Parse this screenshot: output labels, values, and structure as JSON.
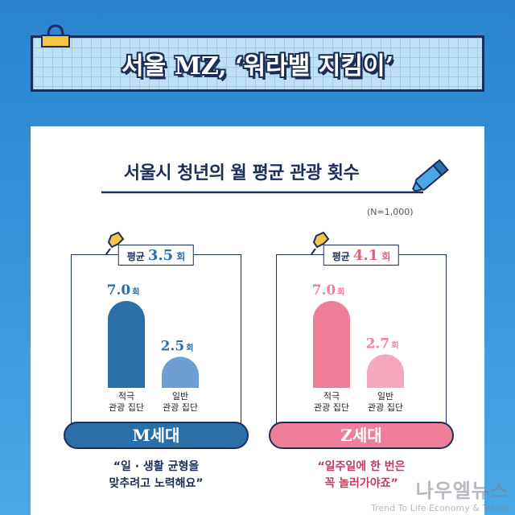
{
  "header": {
    "title": "서울 MZ, ‘워라밸 지킴이’"
  },
  "chart_title": "서울시 청년의 월 평균 관광 횟수",
  "sample_note": "(N=1,000)",
  "colors": {
    "navy": "#1c2d5a",
    "m_dark": "#2b6fa8",
    "m_light": "#6e9fd4",
    "z_dark": "#ef7f98",
    "z_light": "#f5a8bd"
  },
  "chart_data": [
    {
      "type": "bar",
      "group": "M세대",
      "categories": [
        "적극\n관광 집단",
        "일반\n관광 집단"
      ],
      "values": [
        7.0,
        2.5
      ],
      "value_labels": [
        "7.0",
        "2.5"
      ],
      "unit": "회",
      "average_label": "평균",
      "average_value": "3.5",
      "ylim": [
        0,
        7.0
      ]
    },
    {
      "type": "bar",
      "group": "Z세대",
      "categories": [
        "적극\n관광 집단",
        "일반\n관광 집단"
      ],
      "values": [
        7.0,
        2.7
      ],
      "value_labels": [
        "7.0",
        "2.7"
      ],
      "unit": "회",
      "average_label": "평균",
      "average_value": "4.1",
      "ylim": [
        0,
        7.0
      ]
    }
  ],
  "quotes": {
    "m_line1": "“일 · 생활 균형을",
    "m_line2": "맞추려고 노력해요”",
    "z_line1": "“일주일에 한 번은",
    "z_line2": "꼭 놀러가야죠”"
  },
  "watermark": {
    "ko": "나우엘뉴스",
    "en": "Trend To Life Economy & Travel"
  }
}
